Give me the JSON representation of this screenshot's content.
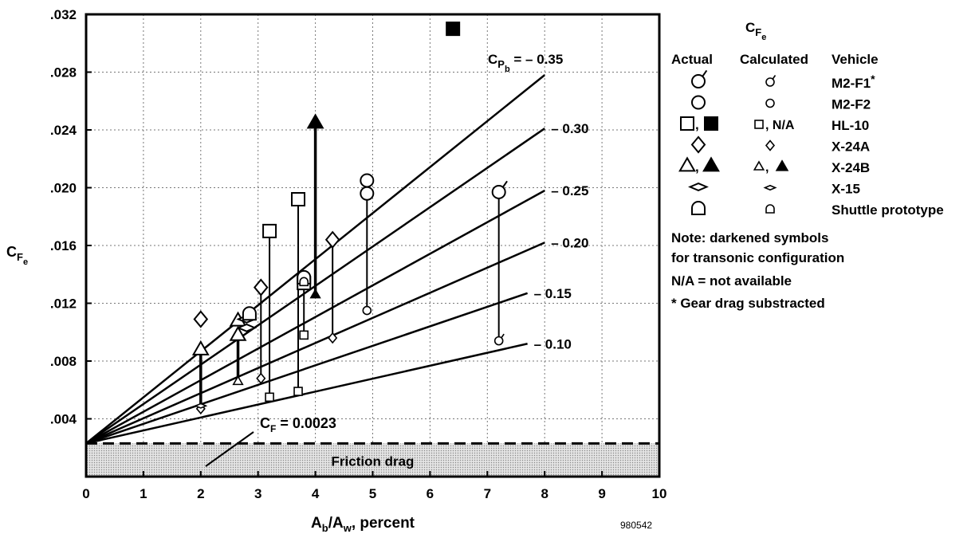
{
  "chart_data": {
    "type": "scatter",
    "title": "",
    "xlabel": {
      "main": "A",
      "sub1": "b",
      "mid": "/A",
      "sub2": "w",
      "tail": ", percent"
    },
    "ylabel": {
      "main": "C",
      "sub1": "F",
      "sub2": "e"
    },
    "xlim": [
      0,
      10
    ],
    "ylim": [
      0,
      0.032
    ],
    "x_ticks": [
      0,
      1,
      2,
      3,
      4,
      5,
      6,
      7,
      8,
      9,
      10
    ],
    "x_tick_labels": [
      "0",
      "1",
      "2",
      "3",
      "4",
      "5",
      "6",
      "7",
      "8",
      "9",
      "10"
    ],
    "y_ticks": [
      0.004,
      0.008,
      0.012,
      0.016,
      0.02,
      0.024,
      0.028,
      0.032
    ],
    "y_tick_labels": [
      ".004",
      ".008",
      ".012",
      ".016",
      ".020",
      ".024",
      ".028",
      ".032"
    ],
    "grid": true,
    "friction_line": {
      "value": 0.0023,
      "label_main": "C",
      "label_sub": "F",
      "label_tail": " = 0.0023"
    },
    "friction_band_label": "Friction drag",
    "pressure_lines": [
      {
        "cpb": "– 0.35",
        "x_end": 8.0,
        "y_end": 0.0278
      },
      {
        "cpb": "– 0.30",
        "x_end": 8.0,
        "y_end": 0.0241
      },
      {
        "cpb": "– 0.25",
        "x_end": 8.0,
        "y_end": 0.0198
      },
      {
        "cpb": "– 0.20",
        "x_end": 8.0,
        "y_end": 0.0162
      },
      {
        "cpb": "– 0.15",
        "x_end": 7.7,
        "y_end": 0.0127
      },
      {
        "cpb": "– 0.10",
        "x_end": 7.7,
        "y_end": 0.0092
      }
    ],
    "pressure_label_prefix": {
      "main": "C",
      "sub1": "P",
      "sub2": "b",
      "eq": " = "
    },
    "series": [
      {
        "name": "M2-F1*",
        "points": [
          {
            "x": 7.2,
            "y": 0.0197,
            "size": "large"
          },
          {
            "x": 7.2,
            "y": 0.0094,
            "size": "small"
          }
        ]
      },
      {
        "name": "M2-F2",
        "points": [
          {
            "x": 4.9,
            "y": 0.0205,
            "size": "large"
          },
          {
            "x": 4.9,
            "y": 0.0196,
            "size": "large"
          },
          {
            "x": 4.9,
            "y": 0.0115,
            "size": "small"
          }
        ]
      },
      {
        "name": "HL-10",
        "points": [
          {
            "x": 3.2,
            "y": 0.017,
            "size": "large"
          },
          {
            "x": 3.2,
            "y": 0.0055,
            "size": "small"
          },
          {
            "x": 3.7,
            "y": 0.0192,
            "size": "large"
          },
          {
            "x": 3.7,
            "y": 0.0059,
            "size": "small"
          },
          {
            "x": 3.8,
            "y": 0.0134,
            "size": "large"
          },
          {
            "x": 3.8,
            "y": 0.0098,
            "size": "small"
          },
          {
            "x": 6.4,
            "y": 0.031,
            "size": "large",
            "filled": true
          }
        ]
      },
      {
        "name": "X-24A",
        "points": [
          {
            "x": 2.0,
            "y": 0.0109,
            "size": "large"
          },
          {
            "x": 2.0,
            "y": 0.0047,
            "size": "small"
          },
          {
            "x": 3.05,
            "y": 0.0131,
            "size": "large"
          },
          {
            "x": 3.05,
            "y": 0.0068,
            "size": "small"
          },
          {
            "x": 4.3,
            "y": 0.0164,
            "size": "large"
          },
          {
            "x": 4.3,
            "y": 0.0096,
            "size": "small"
          }
        ]
      },
      {
        "name": "X-24B",
        "points": [
          {
            "x": 2.0,
            "y": 0.0088,
            "size": "large"
          },
          {
            "x": 2.65,
            "y": 0.0108,
            "size": "large"
          },
          {
            "x": 2.65,
            "y": 0.0098,
            "size": "large"
          },
          {
            "x": 2.65,
            "y": 0.0066,
            "size": "small"
          },
          {
            "x": 4.0,
            "y": 0.0245,
            "size": "large",
            "filled": true
          },
          {
            "x": 4.0,
            "y": 0.0126,
            "size": "small",
            "filled": true
          }
        ]
      },
      {
        "name": "X-15",
        "points": [
          {
            "x": 2.0,
            "y": 0.0049,
            "size": "small"
          },
          {
            "x": 2.8,
            "y": 0.0109,
            "size": "large"
          },
          {
            "x": 2.8,
            "y": 0.0103,
            "size": "large"
          }
        ]
      },
      {
        "name": "Shuttle prototype",
        "points": [
          {
            "x": 2.85,
            "y": 0.0113,
            "size": "large"
          },
          {
            "x": 3.8,
            "y": 0.0138,
            "size": "large"
          },
          {
            "x": 3.8,
            "y": 0.0135,
            "size": "small"
          }
        ]
      }
    ],
    "connectors": [
      {
        "x": 2.0,
        "y1": 0.0047,
        "y2": 0.0088,
        "thick": true
      },
      {
        "x": 2.65,
        "y1": 0.0066,
        "y2": 0.0098,
        "thick": true
      },
      {
        "x": 3.05,
        "y1": 0.0068,
        "y2": 0.0131
      },
      {
        "x": 3.2,
        "y1": 0.0055,
        "y2": 0.017
      },
      {
        "x": 3.7,
        "y1": 0.0059,
        "y2": 0.0192
      },
      {
        "x": 3.8,
        "y1": 0.0098,
        "y2": 0.0134
      },
      {
        "x": 4.0,
        "y1": 0.0126,
        "y2": 0.0245,
        "thick": true
      },
      {
        "x": 4.3,
        "y1": 0.0096,
        "y2": 0.0164
      },
      {
        "x": 4.9,
        "y1": 0.0115,
        "y2": 0.0196
      },
      {
        "x": 7.2,
        "y1": 0.0094,
        "y2": 0.0197
      }
    ],
    "figure_number": "980542"
  },
  "legend": {
    "title": {
      "main": "C",
      "sub1": "F",
      "sub2": "e"
    },
    "headers": {
      "actual": "Actual",
      "calculated": "Calculated",
      "vehicle": "Vehicle"
    },
    "rows": [
      {
        "vehicle": "M2-F1",
        "star": "*",
        "actual_text": "",
        "calc_text": ""
      },
      {
        "vehicle": "M2-F2",
        "star": "",
        "actual_text": "",
        "calc_text": ""
      },
      {
        "vehicle": "HL-10",
        "star": "",
        "actual_text": ",",
        "calc_text": ", N/A"
      },
      {
        "vehicle": "X-24A",
        "star": "",
        "actual_text": "",
        "calc_text": ""
      },
      {
        "vehicle": "X-24B",
        "star": "",
        "actual_text": ",",
        "calc_text": ", "
      },
      {
        "vehicle": "X-15",
        "star": "",
        "actual_text": "",
        "calc_text": ""
      },
      {
        "vehicle": "Shuttle prototype",
        "star": "",
        "actual_text": "",
        "calc_text": ""
      }
    ],
    "notes": [
      "Note:  darkened symbols",
      "  for transonic configuration",
      "N/A = not available",
      "* Gear drag substracted"
    ]
  }
}
